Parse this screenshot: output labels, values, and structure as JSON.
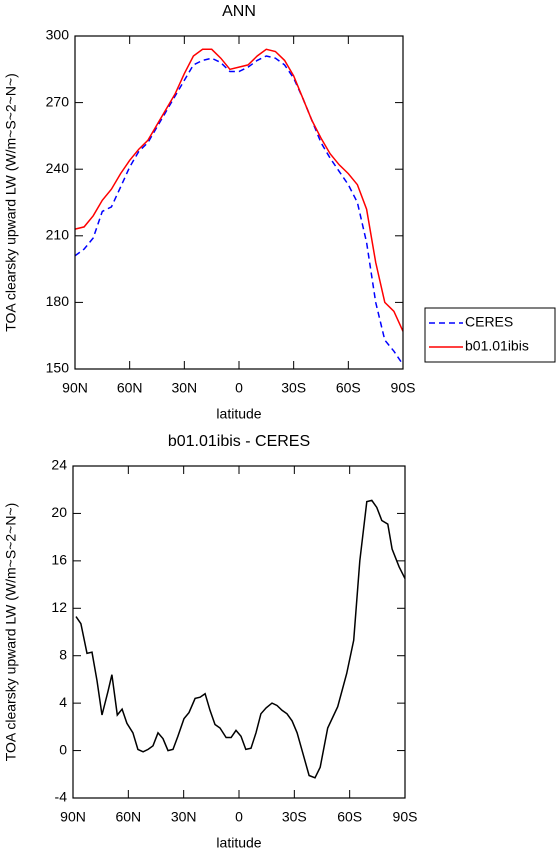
{
  "chart_data": [
    {
      "type": "line",
      "title": "ANN",
      "xlabel": "latitude",
      "ylabel": "TOA clearsky upward LW (W/m~S~2~N~)",
      "x": [
        90,
        85,
        80,
        75,
        70,
        65,
        60,
        55,
        50,
        45,
        40,
        35,
        30,
        25,
        20,
        15,
        10,
        5,
        0,
        -5,
        -10,
        -15,
        -20,
        -25,
        -30,
        -35,
        -40,
        -45,
        -50,
        -55,
        -60,
        -65,
        -70,
        -75,
        -80,
        -85,
        -90
      ],
      "xlim": [
        90,
        -90
      ],
      "xticks": [
        {
          "value": 90,
          "label": "90N"
        },
        {
          "value": 60,
          "label": "60N"
        },
        {
          "value": 30,
          "label": "30N"
        },
        0,
        {
          "value": -30,
          "label": "30S"
        },
        {
          "value": -60,
          "label": "60S"
        },
        {
          "value": -90,
          "label": "90S"
        }
      ],
      "ylim": [
        150,
        300
      ],
      "yticks": [
        150,
        180,
        210,
        240,
        270,
        300
      ],
      "legend": "right",
      "series": [
        {
          "name": "CERES",
          "color": "#0000ff",
          "dash": true,
          "values": [
            201,
            204,
            209,
            221,
            223,
            232,
            241,
            248,
            252,
            259,
            266,
            273,
            280,
            287,
            289,
            290,
            288,
            284,
            284,
            286,
            289,
            291,
            290,
            287,
            281,
            272,
            262,
            252,
            245,
            239,
            233,
            225,
            207,
            180,
            163,
            158,
            152
          ]
        },
        {
          "name": "b01.01ibis",
          "color": "#ff0000",
          "dash": false,
          "values": [
            213,
            214,
            219,
            226,
            231,
            238,
            244,
            249,
            253,
            260,
            267,
            274,
            283,
            291,
            294,
            294,
            290,
            285,
            286,
            287,
            291,
            294,
            293,
            289,
            282,
            272,
            262,
            254,
            247,
            242,
            238,
            233,
            222,
            198,
            180,
            176,
            167
          ]
        }
      ]
    },
    {
      "type": "line",
      "title": "b01.01ibis - CERES",
      "xlabel": "latitude",
      "ylabel": "TOA clearsky upward LW (W/m~S~2~N~)",
      "x": [
        88.4,
        85.7,
        82.4,
        79.7,
        77,
        74.3,
        71,
        68.9,
        66,
        63.4,
        60.8,
        57.5,
        54.8,
        52,
        49.3,
        46.6,
        43.9,
        41.2,
        38.5,
        35.8,
        33.1,
        29.8,
        27.1,
        23.8,
        21.1,
        18.4,
        15.7,
        13,
        10.3,
        7,
        4.3,
        1.6,
        -1.1,
        -3.7,
        -6.5,
        -9.2,
        -11.9,
        -14.7,
        -17.9,
        -20.6,
        -23.3,
        -26,
        -28.8,
        -31.5,
        -34.2,
        -38,
        -41.2,
        -44,
        -48.1,
        -53.5,
        -58.4,
        -62.2,
        -65.5,
        -69.3,
        -72,
        -74.7,
        -77.4,
        -80.7,
        -83,
        -86.8,
        -90
      ],
      "xlim": [
        90,
        -90
      ],
      "xticks": [
        {
          "value": 90,
          "label": "90N"
        },
        {
          "value": 60,
          "label": "60N"
        },
        {
          "value": 30,
          "label": "30N"
        },
        0,
        {
          "value": -30,
          "label": "30S"
        },
        {
          "value": -60,
          "label": "60S"
        },
        {
          "value": -90,
          "label": "90S"
        }
      ],
      "ylim": [
        -4,
        24
      ],
      "yticks": [
        -4,
        0,
        4,
        8,
        12,
        16,
        20,
        24
      ],
      "series": [
        {
          "color": "#000000",
          "dash": false,
          "values": [
            11.3,
            10.7,
            8.2,
            8.3,
            5.9,
            3.0,
            5.0,
            6.4,
            3.0,
            3.5,
            2.3,
            1.5,
            0.1,
            -0.1,
            0.1,
            0.4,
            1.5,
            1.0,
            0,
            0.1,
            1.2,
            2.7,
            3.2,
            4.4,
            4.5,
            4.8,
            3.4,
            2.2,
            1.9,
            1.1,
            1.1,
            1.7,
            1.2,
            0.1,
            0.2,
            1.5,
            3.1,
            3.6,
            4.0,
            3.8,
            3.4,
            3.1,
            2.5,
            1.5,
            0,
            -2.1,
            -2.3,
            -1.4,
            1.9,
            3.7,
            6.5,
            9.3,
            16,
            21,
            21.1,
            20.5,
            19.4,
            19.1,
            17,
            15.5,
            14.5
          ]
        }
      ]
    }
  ]
}
